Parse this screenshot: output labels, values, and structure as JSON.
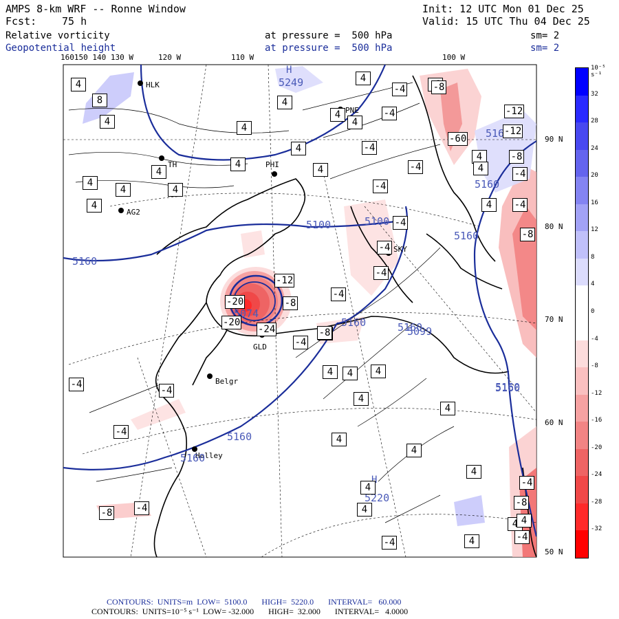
{
  "header": {
    "model": "AMPS 8-km WRF -- Ronne Window",
    "init": "Init: 12 UTC Mon 01 Dec 25",
    "fcst_label": "Fcst:",
    "fcst_value": "75 h",
    "valid": "Valid: 15 UTC Thu 04 Dec 25",
    "field1_name": "Relative vorticity",
    "field1_level": "at pressure =  500 hPa",
    "field1_sm": "sm= 2",
    "field2_name": "Geopotential height",
    "field2_level": "at pressure =  500 hPa",
    "field2_sm": "sm= 2"
  },
  "longitude_labels": [
    "160150 140 130 W",
    "120 W",
    "110 W",
    "100 W"
  ],
  "latitude_labels": [
    "90 N",
    "80 N",
    "70 N",
    "60 N",
    "50 N"
  ],
  "stations": [
    "HLK",
    "PNE",
    "TH",
    "PHI",
    "AG2",
    "SKY",
    "GLD",
    "Belgr",
    "Halley"
  ],
  "height_labels": [
    "5249",
    "5100",
    "5100",
    "5160",
    "5160",
    "5160",
    "5160",
    "5160",
    "5160",
    "5074",
    "5160",
    "5220",
    "5160",
    "5160",
    "5099",
    "5160"
  ],
  "high_markers": [
    "H",
    "H"
  ],
  "vorticity_labels": [
    "4",
    "8",
    "4",
    "-8",
    "4",
    "4",
    "4",
    "-4",
    "-8",
    "-4",
    "-12",
    "4",
    "4",
    "4",
    "4",
    "4",
    "-4",
    "-4",
    "4",
    "4",
    "4",
    "4",
    "-4",
    "4",
    "-60",
    "-4",
    "-4",
    "4",
    "4",
    "-4",
    "4",
    "-8",
    "-4",
    "-4",
    "-12",
    "-8",
    "-20",
    "-24",
    "-20",
    "-8",
    "-4",
    "4",
    "4",
    "-4",
    "-4",
    "4",
    "-8",
    "4",
    "4",
    "4",
    "4",
    "-8",
    "4",
    "4",
    "-4",
    "4",
    "4",
    "-4",
    "-4",
    "-8",
    "-4",
    "-4",
    "4",
    "4",
    "-12",
    "-8",
    "-4"
  ],
  "colorbar": {
    "unit_label": "10⁻⁵ s⁻¹",
    "ticks": [
      "32",
      "28",
      "24",
      "20",
      "16",
      "12",
      "8",
      "4",
      "0",
      "-4",
      "-8",
      "-12",
      "-16",
      "-20",
      "-24",
      "-28",
      "-32"
    ],
    "colors": [
      "#0000ff",
      "#2a2aff",
      "#4848f0",
      "#6464ee",
      "#8484f2",
      "#a2a2f6",
      "#c0c0fa",
      "#dcdcfc",
      "#ffffff",
      "#ffffff",
      "#fcdcdc",
      "#fac0c0",
      "#f6a2a2",
      "#f28484",
      "#ee6464",
      "#f04848",
      "#ff2a2a",
      "#ff0000"
    ]
  },
  "footer": {
    "line1": "CONTOURS:  UNITS=m  LOW=  5100.0       HIGH=  5220.0       INTERVAL=   60.000",
    "line2": "CONTOURS:  UNITS=10⁻⁵ s⁻¹  LOW= -32.000       HIGH=  32.000       INTERVAL=   4.0000"
  },
  "colors": {
    "height_contour": "#1a2d9a",
    "negative": "#f05050",
    "positive": "#7070e8"
  }
}
